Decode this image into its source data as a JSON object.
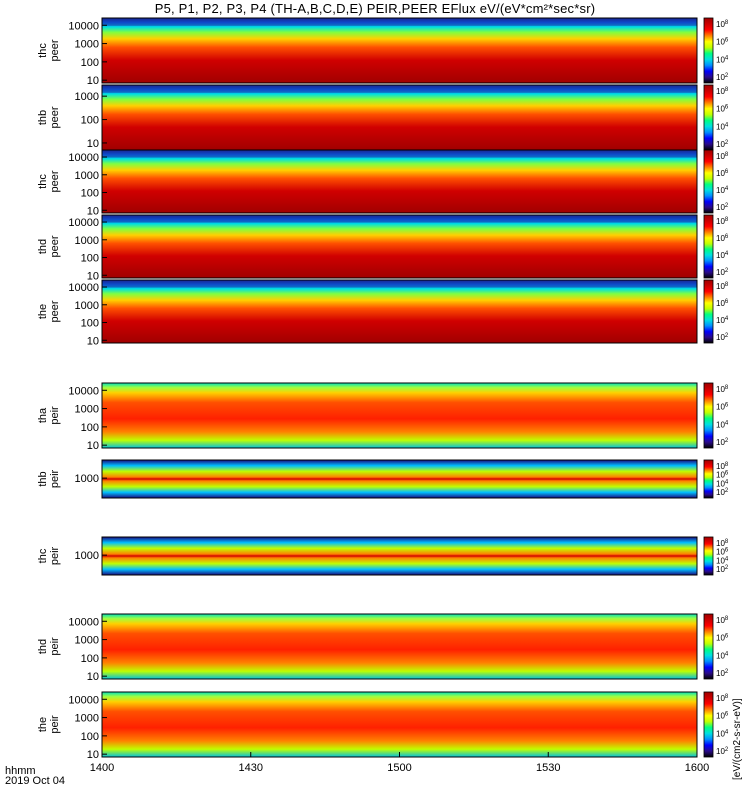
{
  "title": "P5, P1, P2, P3, P4 (TH-A,B,C,D,E) PEIR,PEER EFlux eV/(eV*cm²*sec*sr)",
  "time_axis": {
    "label_line1": "hhmm",
    "label_line2": "2019 Oct 04",
    "ticks": [
      "1400",
      "1430",
      "1500",
      "1530",
      "1600"
    ]
  },
  "colorbar_label": "[eV/(cm2-s-sr-eV)]",
  "colors": {
    "colormap": [
      "#000000",
      "#2a0a8a",
      "#0000ff",
      "#0090ff",
      "#00e0e0",
      "#00ff80",
      "#c0ff00",
      "#ffff00",
      "#ff8000",
      "#ff0000",
      "#cc0000",
      "#a00000"
    ],
    "background": "#ffffff"
  },
  "chart_data": [
    {
      "type": "heatmap",
      "panel": "thc peer",
      "ylabel": [
        "thc",
        "peer"
      ],
      "yscale": "log",
      "ytick_labels": [
        "10000",
        "1000",
        "100",
        "10"
      ],
      "ylim": [
        7,
        25000
      ],
      "xlim": [
        "1400",
        "1600"
      ],
      "colorbar_ticks": [
        "10^8",
        "10^6",
        "10^4",
        "10^2"
      ]
    },
    {
      "type": "heatmap",
      "panel": "thb peer",
      "ylabel": [
        "thb",
        "peer"
      ],
      "yscale": "log",
      "ytick_labels": [
        "1000",
        "100",
        "10"
      ],
      "ylim": [
        5,
        3000
      ],
      "xlim": [
        "1400",
        "1600"
      ],
      "colorbar_ticks": [
        "10^8",
        "10^6",
        "10^4",
        "10^2"
      ]
    },
    {
      "type": "heatmap",
      "panel": "thc peer",
      "ylabel": [
        "thc",
        "peer"
      ],
      "yscale": "log",
      "ytick_labels": [
        "10000",
        "1000",
        "100",
        "10"
      ],
      "ylim": [
        7,
        25000
      ],
      "xlim": [
        "1400",
        "1600"
      ],
      "colorbar_ticks": [
        "10^8",
        "10^6",
        "10^4",
        "10^2"
      ]
    },
    {
      "type": "heatmap",
      "panel": "thd peer",
      "ylabel": [
        "thd",
        "peer"
      ],
      "yscale": "log",
      "ytick_labels": [
        "10000",
        "1000",
        "100",
        "10"
      ],
      "ylim": [
        7,
        25000
      ],
      "xlim": [
        "1400",
        "1600"
      ],
      "colorbar_ticks": [
        "10^8",
        "10^6",
        "10^4",
        "10^2"
      ]
    },
    {
      "type": "heatmap",
      "panel": "the peer",
      "ylabel": [
        "the",
        "peer"
      ],
      "yscale": "log",
      "ytick_labels": [
        "10000",
        "1000",
        "100",
        "10"
      ],
      "ylim": [
        7,
        25000
      ],
      "xlim": [
        "1400",
        "1600"
      ],
      "colorbar_ticks": [
        "10^8",
        "10^6",
        "10^4",
        "10^2"
      ]
    },
    {
      "type": "heatmap",
      "panel": "tha peir",
      "ylabel": [
        "tha",
        "peir"
      ],
      "yscale": "log",
      "ytick_labels": [
        "10000",
        "1000",
        "100",
        "10"
      ],
      "ylim": [
        7,
        25000
      ],
      "xlim": [
        "1400",
        "1600"
      ],
      "colorbar_ticks": [
        "10^8",
        "10^6",
        "10^4",
        "10^2"
      ]
    },
    {
      "type": "heatmap",
      "panel": "thb peir",
      "ylabel": [
        "thb",
        "peir"
      ],
      "yscale": "log",
      "ytick_labels": [
        "1000"
      ],
      "ylim": [
        300,
        3000
      ],
      "xlim": [
        "1400",
        "1600"
      ],
      "colorbar_ticks": [
        "10^8",
        "10^6",
        "10^4",
        "10^2"
      ]
    },
    {
      "type": "heatmap",
      "panel": "thc peir",
      "ylabel": [
        "thc",
        "peir"
      ],
      "yscale": "log",
      "ytick_labels": [
        "1000"
      ],
      "ylim": [
        300,
        3000
      ],
      "xlim": [
        "1400",
        "1600"
      ],
      "colorbar_ticks": [
        "10^8",
        "10^6",
        "10^4",
        "10^2"
      ]
    },
    {
      "type": "heatmap",
      "panel": "thd peir",
      "ylabel": [
        "thd",
        "peir"
      ],
      "yscale": "log",
      "ytick_labels": [
        "10000",
        "1000",
        "100",
        "10"
      ],
      "ylim": [
        7,
        25000
      ],
      "xlim": [
        "1400",
        "1600"
      ],
      "colorbar_ticks": [
        "10^8",
        "10^6",
        "10^4",
        "10^2"
      ]
    },
    {
      "type": "heatmap",
      "panel": "the peir",
      "ylabel": [
        "the",
        "peir"
      ],
      "yscale": "log",
      "ytick_labels": [
        "10000",
        "1000",
        "100",
        "10"
      ],
      "ylim": [
        7,
        25000
      ],
      "xlim": [
        "1400",
        "1600"
      ],
      "colorbar_ticks": [
        "10^8",
        "10^6",
        "10^4",
        "10^2"
      ]
    }
  ]
}
